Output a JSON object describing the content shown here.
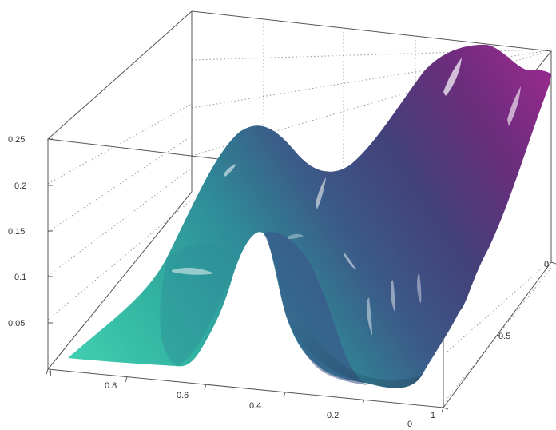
{
  "chart_data": {
    "type": "surface",
    "title": "",
    "xlabel": "",
    "ylabel": "",
    "zlabel": "",
    "grid": true,
    "x_axis": {
      "ticks": [
        1,
        0.8,
        0.6,
        0.4,
        0.2,
        0
      ],
      "labels": [
        "1",
        "0.8",
        "0.6",
        "0.4",
        "0.2",
        "0"
      ],
      "range": [
        0,
        1
      ]
    },
    "y_axis": {
      "ticks": [
        0,
        0.5,
        1
      ],
      "labels": [
        "0",
        "0.5",
        "1"
      ],
      "range": [
        0,
        1
      ]
    },
    "z_axis": {
      "ticks": [
        0.05,
        0.1,
        0.15,
        0.2,
        0.25
      ],
      "labels": [
        "0.05",
        "0.1",
        "0.15",
        "0.2",
        "0.25"
      ],
      "range": [
        0,
        0.25
      ]
    },
    "colormap": [
      "#3fcfb0",
      "#2a9e9a",
      "#3a5e8a",
      "#3d3f78",
      "#6a2c7a",
      "#9a2a8e"
    ],
    "ridges": [
      {
        "x": 0.33,
        "peak_z": 0.12
      },
      {
        "x": 0.58,
        "peak_z": 0.16
      }
    ],
    "far_side_peak_z": 0.26
  }
}
